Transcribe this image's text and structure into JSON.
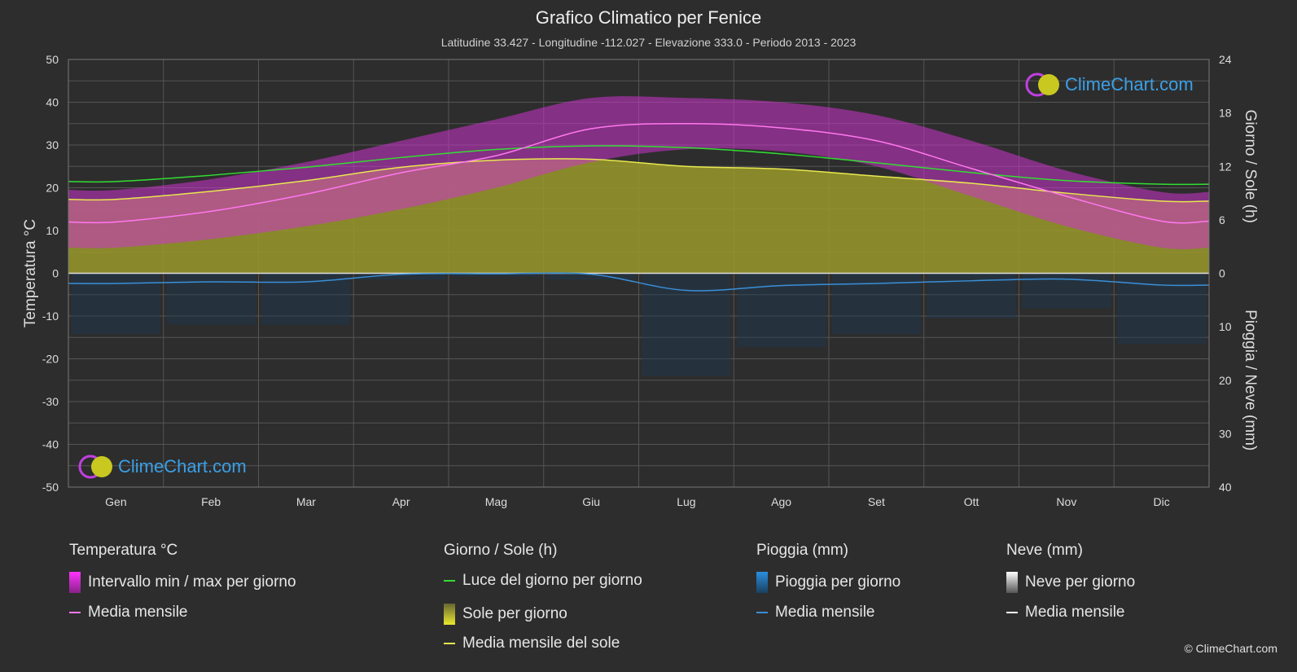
{
  "title": "Grafico Climatico per Fenice",
  "subtitle": "Latitudine 33.427 - Longitudine -112.027 - Elevazione 333.0 - Periodo 2013 - 2023",
  "copyright": "© ClimeChart.com",
  "logo_text": "ClimeChart.com",
  "colors": {
    "background": "#2d2d2d",
    "temp_range": "#cc33cc",
    "temp_mean": "#ff77ee",
    "daylight": "#33dd33",
    "sunshine_fill": "#9a9a2c",
    "sunshine_mean": "#e8e850",
    "rain": "#2a8ee0",
    "rain_mean": "#3a8fd8",
    "snow_mean": "#ffffff"
  },
  "legend": {
    "temp_header": "Temperatura °C",
    "temp_range_label": "Intervallo min / max per giorno",
    "temp_mean_label": "Media mensile",
    "sun_header": "Giorno / Sole (h)",
    "daylight_label": "Luce del giorno per giorno",
    "sun_label": "Sole per giorno",
    "sun_mean_label": "Media mensile del sole",
    "rain_header": "Pioggia (mm)",
    "rain_label": "Pioggia per giorno",
    "rain_mean_label": "Media mensile",
    "snow_header": "Neve (mm)",
    "snow_label": "Neve per giorno",
    "snow_mean_label": "Media mensile"
  },
  "chart_data": {
    "type": "line",
    "categories": [
      "Gen",
      "Feb",
      "Mar",
      "Apr",
      "Mag",
      "Giu",
      "Lug",
      "Ago",
      "Set",
      "Ott",
      "Nov",
      "Dic"
    ],
    "left_axis": {
      "label": "Temperatura °C",
      "ylim": [
        -50,
        50
      ],
      "ticks": [
        50,
        40,
        30,
        20,
        10,
        0,
        -10,
        -20,
        -30,
        -40,
        -50
      ]
    },
    "right_axis_top": {
      "label": "Giorno / Sole (h)",
      "ylim": [
        0,
        24
      ],
      "ticks": [
        24,
        18,
        12,
        6,
        0
      ]
    },
    "right_axis_bottom": {
      "label": "Pioggia / Neve (mm)",
      "ylim": [
        0,
        40
      ],
      "ticks": [
        0,
        10,
        20,
        30,
        40
      ]
    },
    "grid": true,
    "series": [
      {
        "name": "Media mensile",
        "axis": "temperature",
        "values": [
          12.0,
          14.5,
          18.5,
          23.5,
          27.5,
          33.8,
          35.0,
          34.0,
          31.0,
          24.5,
          18.0,
          12.2
        ]
      },
      {
        "name": "Intervallo min / max per giorno (min)",
        "axis": "temperature",
        "values": [
          6,
          8,
          11,
          15,
          20,
          26,
          29,
          28.5,
          25,
          18,
          11,
          6
        ]
      },
      {
        "name": "Intervallo min / max per giorno (max)",
        "axis": "temperature",
        "values": [
          19.5,
          22,
          26,
          31,
          36,
          41,
          41,
          40,
          37,
          31,
          24,
          19
        ]
      },
      {
        "name": "Luce del giorno per giorno",
        "axis": "daylight_hours",
        "values": [
          10.3,
          11.0,
          11.9,
          13.0,
          13.9,
          14.3,
          14.1,
          13.4,
          12.4,
          11.3,
          10.4,
          10.0
        ]
      },
      {
        "name": "Media mensile del sole",
        "axis": "daylight_hours",
        "values": [
          8.3,
          9.2,
          10.4,
          11.9,
          12.7,
          12.8,
          12.0,
          11.7,
          10.9,
          10.1,
          9.0,
          8.1
        ]
      },
      {
        "name": "Media mensile",
        "axis": "precipitation_mm",
        "values": [
          1.9,
          1.6,
          1.6,
          0.2,
          0.1,
          0.2,
          3.2,
          2.3,
          1.9,
          1.4,
          1.1,
          2.2
        ]
      }
    ]
  }
}
